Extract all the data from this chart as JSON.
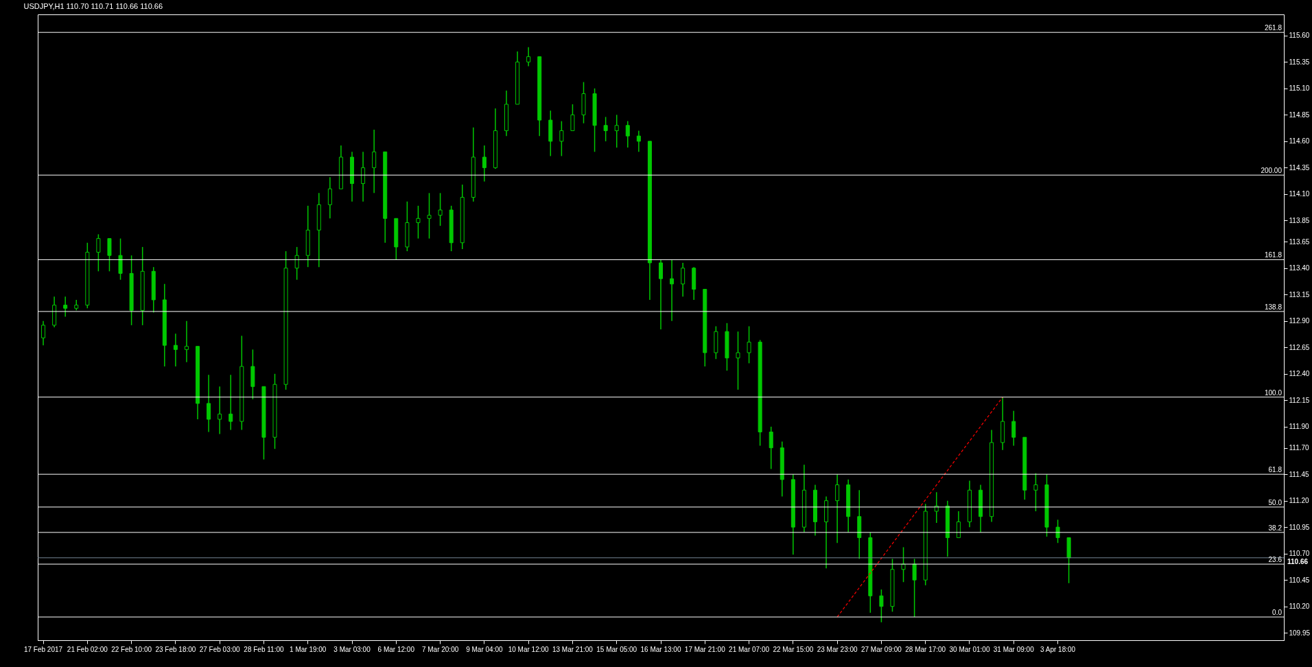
{
  "chart_data": {
    "type": "candlestick",
    "title": "USDJPY,H1  110.70 110.71 110.66 110.66",
    "color": "#00c800",
    "categories": [
      "17 Feb 2017",
      null,
      null,
      null,
      "21 Feb 02:00",
      null,
      null,
      null,
      "22 Feb 10:00",
      null,
      null,
      null,
      "23 Feb 18:00",
      null,
      null,
      null,
      "27 Feb 03:00",
      null,
      null,
      null,
      "28 Feb 11:00",
      null,
      null,
      null,
      "1 Mar 19:00",
      null,
      null,
      null,
      "3 Mar 03:00",
      null,
      null,
      null,
      "6 Mar 12:00",
      null,
      null,
      null,
      "7 Mar 20:00",
      null,
      null,
      null,
      "9 Mar 04:00",
      null,
      null,
      null,
      "10 Mar 12:00",
      null,
      null,
      null,
      "13 Mar 21:00",
      null,
      null,
      null,
      "15 Mar 05:00",
      null,
      null,
      null,
      "16 Mar 13:00",
      null,
      null,
      null,
      "17 Mar 21:00",
      null,
      null,
      null,
      "21 Mar 07:00",
      null,
      null,
      null,
      "22 Mar 15:00",
      null,
      null,
      null,
      "23 Mar 23:00",
      null,
      null,
      null,
      "27 Mar 09:00",
      null,
      null,
      null,
      "28 Mar 17:00",
      null,
      null,
      null,
      "30 Mar 01:00",
      null,
      null,
      null,
      "31 Mar 09:00",
      null,
      null,
      null,
      "3 Apr 18:00",
      null,
      null,
      null,
      null,
      null,
      null,
      null,
      null,
      null,
      null,
      null,
      null,
      null,
      null,
      null,
      null,
      null,
      null,
      null,
      null
    ],
    "ohlc": [
      [
        112.74,
        112.9,
        112.67,
        112.86
      ],
      [
        112.86,
        113.13,
        112.84,
        113.05
      ],
      [
        113.05,
        113.13,
        112.94,
        113.02
      ],
      [
        113.02,
        113.1,
        113.0,
        113.05
      ],
      [
        113.05,
        113.64,
        113.02,
        113.55
      ],
      [
        113.55,
        113.72,
        113.37,
        113.68
      ],
      [
        113.68,
        113.68,
        113.37,
        113.52
      ],
      [
        113.52,
        113.68,
        113.29,
        113.35
      ],
      [
        113.35,
        113.52,
        112.86,
        113.0
      ],
      [
        113.0,
        113.6,
        112.86,
        113.37
      ],
      [
        113.37,
        113.41,
        112.98,
        113.1
      ],
      [
        113.1,
        113.25,
        112.47,
        112.67
      ],
      [
        112.67,
        112.78,
        112.47,
        112.63
      ],
      [
        112.63,
        112.9,
        112.51,
        112.66
      ],
      [
        112.66,
        112.66,
        111.97,
        112.12
      ],
      [
        112.12,
        112.39,
        111.85,
        111.97
      ],
      [
        111.97,
        112.28,
        111.83,
        112.02
      ],
      [
        112.02,
        112.39,
        111.87,
        111.95
      ],
      [
        111.95,
        112.76,
        111.87,
        112.47
      ],
      [
        112.47,
        112.63,
        112.16,
        112.28
      ],
      [
        112.28,
        112.28,
        111.59,
        111.8
      ],
      [
        111.8,
        112.4,
        111.69,
        112.3
      ],
      [
        112.3,
        113.56,
        112.25,
        113.4
      ],
      [
        113.4,
        113.6,
        113.29,
        113.52
      ],
      [
        113.52,
        113.99,
        113.41,
        113.76
      ],
      [
        113.76,
        114.11,
        113.41,
        114.0
      ],
      [
        114.0,
        114.26,
        113.87,
        114.15
      ],
      [
        114.15,
        114.56,
        114.15,
        114.45
      ],
      [
        114.45,
        114.5,
        114.03,
        114.2
      ],
      [
        114.2,
        114.5,
        114.03,
        114.35
      ],
      [
        114.35,
        114.71,
        114.11,
        114.5
      ],
      [
        114.5,
        114.5,
        113.64,
        113.87
      ],
      [
        113.87,
        113.87,
        113.48,
        113.6
      ],
      [
        113.6,
        114.03,
        113.56,
        113.83
      ],
      [
        113.83,
        113.99,
        113.68,
        113.87
      ],
      [
        113.87,
        114.11,
        113.68,
        113.9
      ],
      [
        113.9,
        114.11,
        113.8,
        113.95
      ],
      [
        113.95,
        113.99,
        113.56,
        113.64
      ],
      [
        113.64,
        114.19,
        113.58,
        114.07
      ],
      [
        114.07,
        114.73,
        114.03,
        114.45
      ],
      [
        114.45,
        114.56,
        114.22,
        114.35
      ],
      [
        114.35,
        114.91,
        114.34,
        114.7
      ],
      [
        114.7,
        115.08,
        114.65,
        114.95
      ],
      [
        114.95,
        115.45,
        114.95,
        115.35
      ],
      [
        115.35,
        115.49,
        115.31,
        115.4
      ],
      [
        115.4,
        115.4,
        114.65,
        114.8
      ],
      [
        114.8,
        114.89,
        114.46,
        114.6
      ],
      [
        114.6,
        114.79,
        114.46,
        114.7
      ],
      [
        114.7,
        114.95,
        114.7,
        114.85
      ],
      [
        114.85,
        115.16,
        114.77,
        115.05
      ],
      [
        115.05,
        115.1,
        114.5,
        114.75
      ],
      [
        114.75,
        114.83,
        114.6,
        114.7
      ],
      [
        114.7,
        114.85,
        114.54,
        114.75
      ],
      [
        114.75,
        114.79,
        114.54,
        114.65
      ],
      [
        114.65,
        114.7,
        114.5,
        114.6
      ],
      [
        114.6,
        114.6,
        113.1,
        113.45
      ],
      [
        113.45,
        113.48,
        112.82,
        113.3
      ],
      [
        113.3,
        113.48,
        112.9,
        113.25
      ],
      [
        113.25,
        113.45,
        113.13,
        113.4
      ],
      [
        113.4,
        113.41,
        113.1,
        113.2
      ],
      [
        113.2,
        113.2,
        112.47,
        112.6
      ],
      [
        112.6,
        112.85,
        112.54,
        112.8
      ],
      [
        112.8,
        112.88,
        112.43,
        112.55
      ],
      [
        112.55,
        112.8,
        112.25,
        112.6
      ],
      [
        112.6,
        112.85,
        112.5,
        112.7
      ],
      [
        112.7,
        112.72,
        111.72,
        111.85
      ],
      [
        111.85,
        111.9,
        111.5,
        111.7
      ],
      [
        111.7,
        111.76,
        111.24,
        111.4
      ],
      [
        111.4,
        111.45,
        110.69,
        110.95
      ],
      [
        110.95,
        111.54,
        110.9,
        111.3
      ],
      [
        111.3,
        111.35,
        110.87,
        111.0
      ],
      [
        111.0,
        111.24,
        110.56,
        111.2
      ],
      [
        111.2,
        111.45,
        110.8,
        111.35
      ],
      [
        111.35,
        111.4,
        110.9,
        111.05
      ],
      [
        111.05,
        111.3,
        110.65,
        110.85
      ],
      [
        110.85,
        110.9,
        110.14,
        110.3
      ],
      [
        110.3,
        110.36,
        110.05,
        110.2
      ],
      [
        110.2,
        110.65,
        110.15,
        110.55
      ],
      [
        110.55,
        110.76,
        110.43,
        110.6
      ],
      [
        110.6,
        110.65,
        110.1,
        110.45
      ],
      [
        110.45,
        111.17,
        110.4,
        111.1
      ],
      [
        111.1,
        111.28,
        110.99,
        111.15
      ],
      [
        111.15,
        111.2,
        110.67,
        110.85
      ],
      [
        110.85,
        111.1,
        110.85,
        111.0
      ],
      [
        111.0,
        111.39,
        110.95,
        111.3
      ],
      [
        111.3,
        111.35,
        110.9,
        111.05
      ],
      [
        111.05,
        111.87,
        111.0,
        111.75
      ],
      [
        111.75,
        112.18,
        111.68,
        111.95
      ],
      [
        111.95,
        112.05,
        111.72,
        111.8
      ],
      [
        111.8,
        111.8,
        111.21,
        111.3
      ],
      [
        111.3,
        111.46,
        111.1,
        111.35
      ],
      [
        111.35,
        111.45,
        110.86,
        110.95
      ],
      [
        110.95,
        111.02,
        110.8,
        110.85
      ],
      [
        110.85,
        110.85,
        110.42,
        110.66
      ],
      null,
      null,
      null,
      null,
      null,
      null,
      null,
      null,
      null,
      null,
      null,
      null,
      null,
      null,
      null,
      null,
      null,
      null,
      null
    ],
    "series": [
      {
        "type": "line",
        "color": "#ff0000",
        "line_style": "dashed",
        "values": [
          null,
          null,
          null,
          null,
          null,
          null,
          null,
          null,
          null,
          null,
          null,
          null,
          null,
          null,
          null,
          null,
          null,
          null,
          null,
          null,
          null,
          null,
          null,
          null,
          null,
          null,
          null,
          null,
          null,
          null,
          null,
          null,
          null,
          null,
          null,
          null,
          null,
          null,
          null,
          null,
          null,
          null,
          null,
          null,
          null,
          null,
          null,
          null,
          null,
          null,
          null,
          null,
          null,
          null,
          null,
          null,
          null,
          null,
          null,
          null,
          null,
          null,
          null,
          null,
          null,
          null,
          null,
          null,
          null,
          null,
          null,
          null,
          110.1,
          null,
          null,
          null,
          null,
          null,
          null,
          null,
          null,
          null,
          null,
          null,
          null,
          null,
          null,
          112.18,
          null,
          null,
          null,
          null,
          null,
          null,
          null,
          null,
          null,
          null,
          null,
          null,
          null,
          null,
          null,
          null,
          null,
          null,
          null,
          null,
          null,
          null,
          null,
          null,
          null
        ]
      }
    ],
    "ylim": [
      109.88,
      115.8
    ],
    "yticks": [
      {
        "value": 109.95,
        "label": "109.95"
      },
      {
        "value": 110.2,
        "label": "110.20"
      },
      {
        "value": 110.45,
        "label": "110.45"
      },
      {
        "value": 110.7,
        "label": "110.70"
      },
      {
        "value": 110.95,
        "label": "110.95"
      },
      {
        "value": 111.2,
        "label": "111.20"
      },
      {
        "value": 111.45,
        "label": "111.45"
      },
      {
        "value": 111.7,
        "label": "111.70"
      },
      {
        "value": 111.9,
        "label": "111.90"
      },
      {
        "value": 112.15,
        "label": "112.15"
      },
      {
        "value": 112.4,
        "label": "112.40"
      },
      {
        "value": 112.65,
        "label": "112.65"
      },
      {
        "value": 112.9,
        "label": "112.90"
      },
      {
        "value": 113.15,
        "label": "113.15"
      },
      {
        "value": 113.4,
        "label": "113.40"
      },
      {
        "value": 113.65,
        "label": "113.65"
      },
      {
        "value": 113.85,
        "label": "113.85"
      },
      {
        "value": 114.1,
        "label": "114.10"
      },
      {
        "value": 114.35,
        "label": "114.35"
      },
      {
        "value": 114.6,
        "label": "114.60"
      },
      {
        "value": 114.85,
        "label": "114.85"
      },
      {
        "value": 115.1,
        "label": "115.10"
      },
      {
        "value": 115.35,
        "label": "115.35"
      },
      {
        "value": 115.6,
        "label": "115.60"
      }
    ],
    "ref_lines": [
      {
        "axis": "y",
        "value": 110.1,
        "color": "#ffffff"
      },
      {
        "axis": "y",
        "value": 110.6,
        "color": "#ffffff"
      },
      {
        "axis": "y",
        "value": 110.9,
        "color": "#ffffff"
      },
      {
        "axis": "y",
        "value": 111.14,
        "color": "#ffffff"
      },
      {
        "axis": "y",
        "value": 111.45,
        "color": "#ffffff"
      },
      {
        "axis": "y",
        "value": 112.18,
        "color": "#ffffff"
      },
      {
        "axis": "y",
        "value": 112.99,
        "color": "#ffffff"
      },
      {
        "axis": "y",
        "value": 113.48,
        "color": "#ffffff"
      },
      {
        "axis": "y",
        "value": 114.28,
        "color": "#ffffff"
      },
      {
        "axis": "y",
        "value": 115.63,
        "color": "#ffffff"
      },
      {
        "axis": "y",
        "value": 110.66,
        "label": "110.66",
        "color": "#778899"
      }
    ],
    "annotations": [
      {
        "text": "0.0",
        "y": 110.1
      },
      {
        "text": "23.6",
        "y": 110.6
      },
      {
        "text": "38.2",
        "y": 110.9
      },
      {
        "text": "50.0",
        "y": 111.14
      },
      {
        "text": "61.8",
        "y": 111.45
      },
      {
        "text": "100.0",
        "y": 112.18
      },
      {
        "text": "138.8",
        "y": 112.99
      },
      {
        "text": "161.8",
        "y": 113.48
      },
      {
        "text": "200.00",
        "y": 114.28
      },
      {
        "text": "261.8",
        "y": 115.63
      }
    ],
    "grid": false
  }
}
